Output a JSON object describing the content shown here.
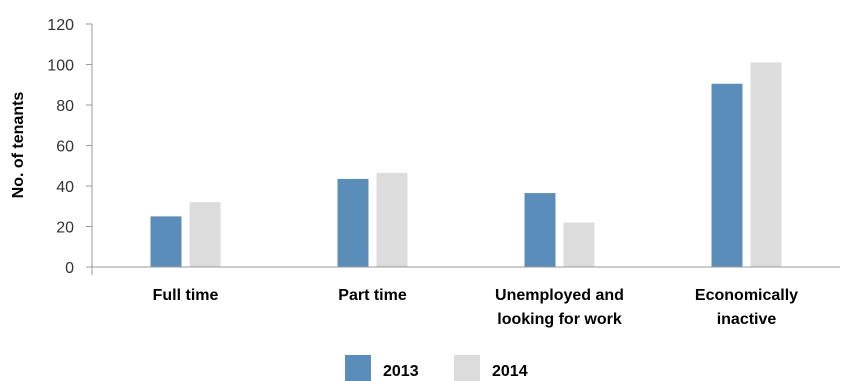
{
  "chart_data": {
    "type": "bar",
    "ylabel": "No. of tenants",
    "ylim": [
      0,
      120
    ],
    "yticks": [
      "0",
      "20",
      "40",
      "60",
      "80",
      "100",
      "120"
    ],
    "categories": [
      [
        "Full time"
      ],
      [
        "Part time"
      ],
      [
        "Unemployed and",
        "looking for work"
      ],
      [
        "Economically",
        "inactive"
      ]
    ],
    "series": [
      {
        "name": "2013",
        "color": "#5b8dba",
        "values": [
          25,
          43.5,
          36.5,
          90.5
        ]
      },
      {
        "name": "2014",
        "color": "#dcdcdc",
        "values": [
          32,
          46.5,
          22,
          101
        ]
      }
    ],
    "grid": false,
    "legend": "bottom"
  }
}
